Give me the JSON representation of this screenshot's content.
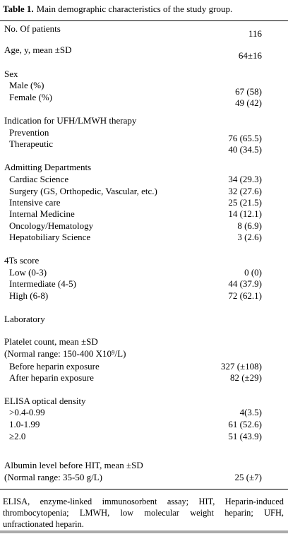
{
  "caption": {
    "label": "Table 1.",
    "text": "Main demographic characteristics of the study group."
  },
  "sections": [
    {
      "title": "No. Of patients",
      "value": "116"
    },
    {
      "title": "Age, y, mean ±SD",
      "value": "64±16"
    },
    {
      "title": "Sex",
      "items": [
        {
          "label": "Male (%)",
          "value": "67 (58)"
        },
        {
          "label": "Female (%)",
          "value": "49 (42)"
        }
      ]
    },
    {
      "title": "Indication for UFH/LMWH therapy",
      "items": [
        {
          "label": "Prevention",
          "value": "76 (65.5)"
        },
        {
          "label": "Therapeutic",
          "value": "40 (34.5)"
        }
      ]
    },
    {
      "title": "Admitting Departments",
      "items": [
        {
          "label": "Cardiac Science",
          "value": "34 (29.3)"
        },
        {
          "label": "Surgery (GS, Orthopedic, Vascular, etc.)",
          "value": "32 (27.6)"
        },
        {
          "label": "Intensive care",
          "value": "25 (21.5)"
        },
        {
          "label": "Internal Medicine",
          "value": "14 (12.1)"
        },
        {
          "label": "Oncology/Hematology",
          "value": "8 (6.9)"
        },
        {
          "label": "Hepatobiliary Science",
          "value": "3 (2.6)"
        }
      ]
    },
    {
      "title": "4Ts score",
      "items": [
        {
          "label": "Low (0-3)",
          "value": "0 (0)"
        },
        {
          "label": "Intermediate (4-5)",
          "value": "44 (37.9)"
        },
        {
          "label": "High (6-8)",
          "value": "72 (62.1)"
        }
      ]
    },
    {
      "title": "Laboratory"
    },
    {
      "title": "Platelet count,  mean ±SD",
      "note": "(Normal range: 150-400 X10⁹/L)",
      "items": [
        {
          "label": "Before heparin exposure",
          "value": "327 (±108)"
        },
        {
          "label": "After heparin exposure",
          "value": "82 (±29)"
        }
      ]
    },
    {
      "title": "ELISA optical density",
      "items": [
        {
          "label": ">0.4-0.99",
          "value": "4(3.5)"
        },
        {
          "label": "1.0-1.99",
          "value": "61 (52.6)"
        },
        {
          "label": "≥2.0",
          "value": "51 (43.9)"
        }
      ]
    },
    {
      "title": "Albumin level before HIT,  mean ±SD",
      "note": "(Normal range: 35-50 g/L)",
      "value": "25 (±7)"
    }
  ],
  "footnote": "ELISA, enzyme-linked immunosorbent assay; HIT, Heparin-induced thrombocytopenia; LMWH, low molecular weight heparin; UFH, unfractionated heparin."
}
